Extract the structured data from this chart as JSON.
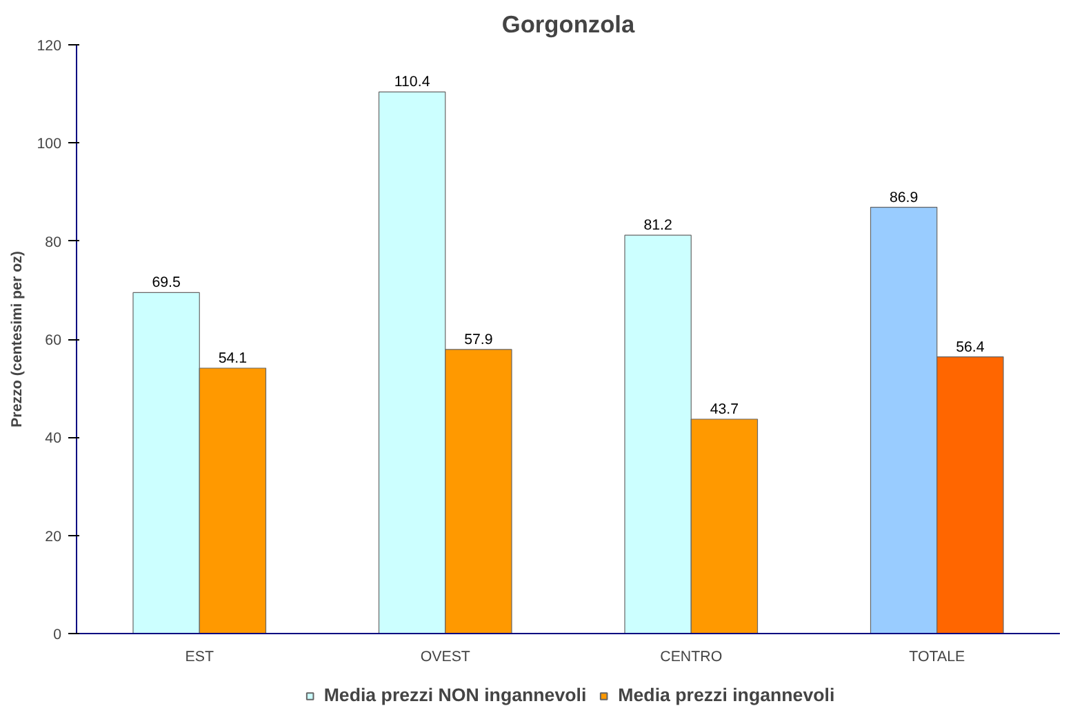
{
  "chart_data": {
    "type": "bar",
    "title": "Gorgonzola",
    "ylabel": "Prezzo (centesimi per oz)",
    "categories": [
      "EST",
      "OVEST",
      "CENTRO",
      "TOTALE"
    ],
    "series": [
      {
        "name": "Media prezzi NON ingannevoli",
        "color": "#ccffff",
        "colors": [
          "#ccffff",
          "#ccffff",
          "#ccffff",
          "#99ccff"
        ],
        "values": [
          69.5,
          110.4,
          81.2,
          86.9
        ]
      },
      {
        "name": "Media prezzi ingannevoli",
        "color": "#ff9900",
        "colors": [
          "#ff9900",
          "#ff9900",
          "#ff9900",
          "#ff6600"
        ],
        "values": [
          54.1,
          57.9,
          43.7,
          56.4
        ]
      }
    ],
    "ylim": [
      0,
      120
    ],
    "yticks": [
      0,
      20,
      40,
      60,
      80,
      100,
      120
    ],
    "data_labels": true,
    "legend": "bottom",
    "grid": false
  }
}
